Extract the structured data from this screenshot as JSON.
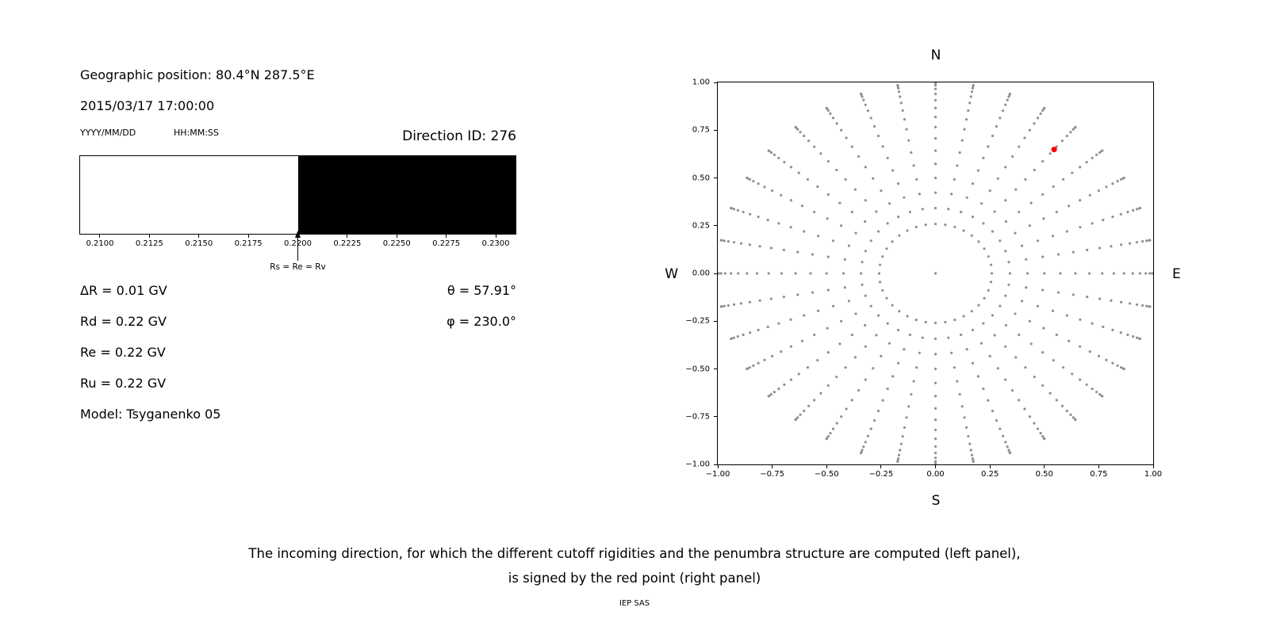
{
  "left_panel": {
    "geo_position": "Geographic position: 80.4°N 287.5°E",
    "datetime": "2015/03/17 17:00:00",
    "date_format_label": "YYYY/MM/DD",
    "time_format_label": "HH:MM:SS",
    "direction_id": "Direction ID: 276",
    "params": [
      "ΔR = 0.01 GV",
      "Rd = 0.22 GV",
      "Re = 0.22 GV",
      "Ru = 0.22 GV",
      "Model: Tsyganenko 05"
    ],
    "theta": "θ = 57.91°",
    "phi": "φ = 230.0°"
  },
  "caption": {
    "line1": "The incoming direction, for which the different cutoff rigidities and the penumbra structure are computed (left panel),",
    "line2": "is signed by the red point (right panel)",
    "credit": "IEP SAS"
  },
  "chart_data": [
    {
      "type": "area",
      "name": "penumbra-structure",
      "xlim": [
        0.209,
        0.231
      ],
      "xtick_values": [
        0.21,
        0.2125,
        0.215,
        0.2175,
        0.22,
        0.2225,
        0.225,
        0.2275,
        0.23
      ],
      "xtick_labels": [
        "0.2100",
        "0.2125",
        "0.2150",
        "0.2175",
        "0.2200",
        "0.2225",
        "0.2250",
        "0.2275",
        "0.2300"
      ],
      "regions": [
        {
          "from": 0.209,
          "to": 0.22,
          "color": "#ffffff"
        },
        {
          "from": 0.22,
          "to": 0.231,
          "color": "#000000"
        }
      ],
      "annotation": {
        "text": "Rs = Re = Rv",
        "x": 0.22
      }
    },
    {
      "type": "scatter",
      "name": "incoming-directions",
      "xlim": [
        -1,
        1
      ],
      "ylim": [
        -1,
        1
      ],
      "xtick_values": [
        -1,
        -0.75,
        -0.5,
        -0.25,
        0,
        0.25,
        0.5,
        0.75,
        1
      ],
      "xtick_labels": [
        "−1.00",
        "−0.75",
        "−0.50",
        "−0.25",
        "0.00",
        "0.25",
        "0.50",
        "0.75",
        "1.00"
      ],
      "ytick_values": [
        -1,
        -0.75,
        -0.5,
        -0.25,
        0,
        0.25,
        0.5,
        0.75,
        1
      ],
      "ytick_labels": [
        "−1.00",
        "−0.75",
        "−0.50",
        "−0.25",
        "0.00",
        "0.25",
        "0.50",
        "0.75",
        "1.00"
      ],
      "compass": {
        "top": "N",
        "bottom": "S",
        "left": "W",
        "right": "E"
      },
      "direction_grid": {
        "azimuth_deg": {
          "start": 0,
          "stop": 350,
          "step": 10
        },
        "zenith_deg": {
          "start": 15,
          "stop": 90,
          "step": 5
        },
        "radius_rule": "sin(zenith)",
        "include_center_point": true,
        "color": "#909090",
        "dot_radius_px": 1.6
      },
      "selected_direction": {
        "x": 0.545,
        "y": 0.649,
        "color": "#ff0000",
        "dot_radius_px": 3.5
      }
    }
  ]
}
